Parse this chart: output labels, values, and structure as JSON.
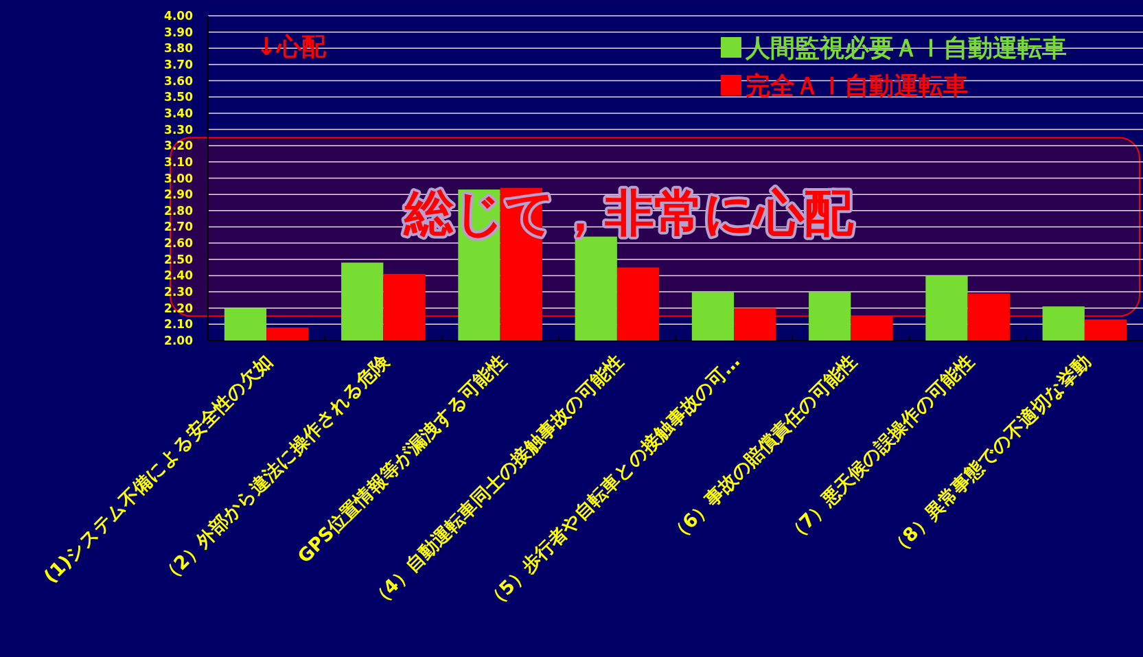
{
  "chart_data": {
    "type": "bar",
    "categories": [
      "(1)システム不備による安全性の欠如",
      "（2）外部から違法に操作される危険",
      "GPS位置情報等が漏洩する可能性",
      "（4）自動運転車同士の接触事故の可能性",
      "（5）歩行者や自転車との接触事故の可…",
      "（6）事故の賠償責任の可能性",
      "（7）悪天候の誤操作の可能性",
      "（8）異常事態での不適切な挙動"
    ],
    "series": [
      {
        "name": "人間監視必要ＡＩ自動運転車",
        "color": "#77dd33",
        "values": [
          2.2,
          2.48,
          2.93,
          2.64,
          2.3,
          2.3,
          2.4,
          2.21
        ]
      },
      {
        "name": "完全ＡＩ自動運転車",
        "color": "#ff0000",
        "values": [
          2.08,
          2.41,
          2.94,
          2.45,
          2.2,
          2.15,
          2.29,
          2.13
        ]
      }
    ],
    "ylim": [
      2.0,
      4.0
    ],
    "yticks": [
      {
        "value": 2.0,
        "label": "2.00"
      },
      {
        "value": 2.1,
        "label": "2.10"
      },
      {
        "value": 2.2,
        "label": "2.20"
      },
      {
        "value": 2.3,
        "label": "2.30"
      },
      {
        "value": 2.4,
        "label": "2.40"
      },
      {
        "value": 2.5,
        "label": "2.50"
      },
      {
        "value": 2.6,
        "label": "2.60"
      },
      {
        "value": 2.7,
        "label": "2.70"
      },
      {
        "value": 2.8,
        "label": "2.80"
      },
      {
        "value": 2.9,
        "label": "2.90"
      },
      {
        "value": 3.0,
        "label": "3.00"
      },
      {
        "value": 3.1,
        "label": "3.10"
      },
      {
        "value": 3.2,
        "label": "3.20"
      },
      {
        "value": 3.3,
        "label": "3.30"
      },
      {
        "value": 3.4,
        "label": "3.40"
      },
      {
        "value": 3.5,
        "label": "3.50"
      },
      {
        "value": 3.6,
        "label": "3.60"
      },
      {
        "value": 3.7,
        "label": "3.70"
      },
      {
        "value": 3.8,
        "label": "3.80"
      },
      {
        "value": 3.9,
        "label": "3.90"
      },
      {
        "value": 4.0,
        "label": "4.00"
      }
    ],
    "grid": "y",
    "legend": "top right",
    "bands": [
      {
        "axis": "y",
        "from": 2.15,
        "to": 3.25,
        "label": "総じて，非常に心配",
        "color": "#2a0050"
      }
    ],
    "annotations": [
      "↓心配"
    ]
  }
}
